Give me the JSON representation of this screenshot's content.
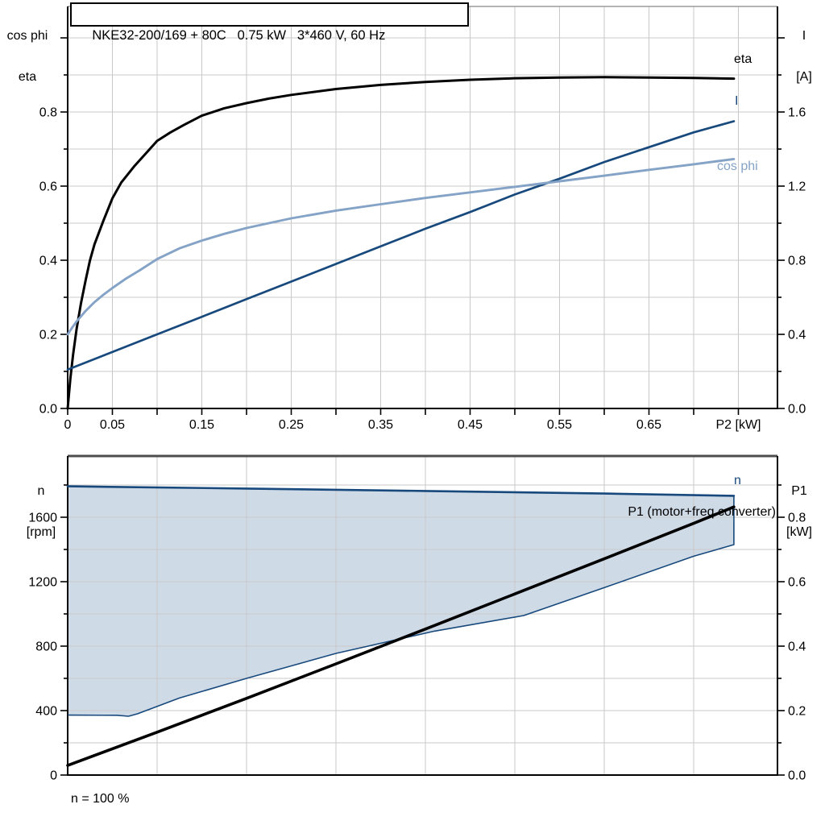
{
  "title": "NKE32-200/169 + 80C   0.75 kW   3*460 V, 60 Hz",
  "colors": {
    "eta": "#000000",
    "current": "#17497C",
    "cos_phi": "#84A3C6",
    "p1": "#000000",
    "area_fill": "#CFDAE7",
    "area_border": "#17497C",
    "grid": "#C9C9C9",
    "axis": "#000000"
  },
  "chart_data": [
    {
      "type": "line",
      "title": "NKE32-200/169 + 80C   0.75 kW   3*460 V, 60 Hz",
      "x_axis": {
        "label": "P2 [kW]",
        "min": 0,
        "max": 0.7937,
        "grid_step": 0.05,
        "tick_step": 0.05,
        "tick_labels": [
          "0",
          "0.05",
          "0.15",
          "0.25",
          "0.35",
          "0.45",
          "0.55",
          "0.65"
        ],
        "tick_label_values": [
          0,
          0.05,
          0.15,
          0.25,
          0.35,
          0.45,
          0.55,
          0.65
        ],
        "axis_label_at": 0.75
      },
      "y_left_axis": {
        "label": [
          "cos phi",
          "eta"
        ],
        "min": 0,
        "max": 1.0848,
        "grid_step": 0.1,
        "minor_tick_step": 0.1,
        "major_tick_step": 0.2,
        "tick_labels": [
          "0.0",
          "0.2",
          "0.4",
          "0.6",
          "0.8"
        ],
        "tick_label_values": [
          0,
          0.2,
          0.4,
          0.6,
          0.8
        ]
      },
      "y_right_axis": {
        "label": [
          "I",
          "[A]"
        ],
        "min": 0,
        "max": 2.1696,
        "minor_tick_step": 0.2,
        "major_tick_step": 0.4,
        "tick_labels": [
          "0.0",
          "0.4",
          "0.8",
          "1.2",
          "1.6"
        ],
        "tick_label_values": [
          0,
          0.4,
          0.8,
          1.2,
          1.6
        ]
      },
      "series": [
        {
          "name": "eta",
          "label": "eta",
          "axis": "left",
          "color_key": "eta",
          "points": [
            [
              0,
              0
            ],
            [
              0.003,
              0.08
            ],
            [
              0.006,
              0.145
            ],
            [
              0.01,
              0.215
            ],
            [
              0.015,
              0.285
            ],
            [
              0.02,
              0.345
            ],
            [
              0.025,
              0.4
            ],
            [
              0.03,
              0.443
            ],
            [
              0.04,
              0.507
            ],
            [
              0.05,
              0.567
            ],
            [
              0.06,
              0.61
            ],
            [
              0.075,
              0.655
            ],
            [
              0.09,
              0.695
            ],
            [
              0.1,
              0.722
            ],
            [
              0.115,
              0.745
            ],
            [
              0.13,
              0.765
            ],
            [
              0.15,
              0.79
            ],
            [
              0.175,
              0.81
            ],
            [
              0.2,
              0.824
            ],
            [
              0.225,
              0.836
            ],
            [
              0.25,
              0.846
            ],
            [
              0.3,
              0.862
            ],
            [
              0.35,
              0.873
            ],
            [
              0.4,
              0.881
            ],
            [
              0.45,
              0.887
            ],
            [
              0.5,
              0.891
            ],
            [
              0.55,
              0.893
            ],
            [
              0.6,
              0.894
            ],
            [
              0.65,
              0.893
            ],
            [
              0.7,
              0.892
            ],
            [
              0.745,
              0.89
            ]
          ]
        },
        {
          "name": "I",
          "label": "I",
          "axis": "right",
          "color_key": "current",
          "points": [
            [
              0,
              0.21
            ],
            [
              0.05,
              0.305
            ],
            [
              0.1,
              0.4
            ],
            [
              0.15,
              0.495
            ],
            [
              0.2,
              0.59
            ],
            [
              0.25,
              0.685
            ],
            [
              0.3,
              0.78
            ],
            [
              0.35,
              0.875
            ],
            [
              0.4,
              0.97
            ],
            [
              0.45,
              1.06
            ],
            [
              0.5,
              1.155
            ],
            [
              0.55,
              1.24
            ],
            [
              0.6,
              1.33
            ],
            [
              0.65,
              1.41
            ],
            [
              0.7,
              1.49
            ],
            [
              0.745,
              1.55
            ]
          ]
        },
        {
          "name": "cos phi",
          "label": "cos phi",
          "axis": "left",
          "color_key": "cos_phi",
          "points": [
            [
              0,
              0.2
            ],
            [
              0.005,
              0.218
            ],
            [
              0.01,
              0.235
            ],
            [
              0.02,
              0.263
            ],
            [
              0.03,
              0.287
            ],
            [
              0.04,
              0.307
            ],
            [
              0.05,
              0.325
            ],
            [
              0.065,
              0.35
            ],
            [
              0.08,
              0.372
            ],
            [
              0.1,
              0.403
            ],
            [
              0.125,
              0.432
            ],
            [
              0.15,
              0.453
            ],
            [
              0.175,
              0.471
            ],
            [
              0.2,
              0.487
            ],
            [
              0.25,
              0.513
            ],
            [
              0.3,
              0.534
            ],
            [
              0.35,
              0.551
            ],
            [
              0.4,
              0.568
            ],
            [
              0.45,
              0.583
            ],
            [
              0.5,
              0.598
            ],
            [
              0.55,
              0.613
            ],
            [
              0.6,
              0.628
            ],
            [
              0.65,
              0.644
            ],
            [
              0.7,
              0.659
            ],
            [
              0.745,
              0.673
            ]
          ]
        }
      ]
    },
    {
      "type": "line-area",
      "x_axis": {
        "label": "",
        "min": 0,
        "max": 0.7937,
        "grid_step": 0.1,
        "tick_step": null,
        "tick_labels": [],
        "tick_label_values": [],
        "axis_label_at": null
      },
      "y_left_axis": {
        "label": [
          "n",
          "[rpm]"
        ],
        "min": 0,
        "max": 1980,
        "grid_step": 200,
        "minor_tick_step": 200,
        "major_tick_step": 400,
        "tick_labels": [
          "0",
          "400",
          "800",
          "1200",
          "1600"
        ],
        "tick_label_values": [
          0,
          400,
          800,
          1200,
          1600
        ]
      },
      "y_right_axis": {
        "label": [
          "P1",
          "[kW]"
        ],
        "min": 0,
        "max": 0.99,
        "minor_tick_step": 0.1,
        "major_tick_step": 0.2,
        "tick_labels": [
          "0.0",
          "0.2",
          "0.4",
          "0.6",
          "0.8"
        ],
        "tick_label_values": [
          0,
          0.2,
          0.4,
          0.6,
          0.8
        ]
      },
      "area": {
        "name": "speed-control-range",
        "fill_color_key": "area_fill",
        "border_color_key": "area_border",
        "upper_points": [
          [
            0,
            1792
          ],
          [
            0.2,
            1778
          ],
          [
            0.4,
            1763
          ],
          [
            0.6,
            1747
          ],
          [
            0.745,
            1733
          ]
        ],
        "lower_points": [
          [
            0,
            372
          ],
          [
            0.055,
            371
          ],
          [
            0.068,
            365
          ],
          [
            0.078,
            380
          ],
          [
            0.125,
            478
          ],
          [
            0.2,
            600
          ],
          [
            0.3,
            755
          ],
          [
            0.41,
            893
          ],
          [
            0.51,
            990
          ],
          [
            0.6,
            1163
          ],
          [
            0.7,
            1358
          ],
          [
            0.745,
            1430
          ]
        ]
      },
      "series": [
        {
          "name": "n",
          "label": "n",
          "axis": "left",
          "color_key": "current",
          "points": [
            [
              0,
              1792
            ],
            [
              0.2,
              1778
            ],
            [
              0.4,
              1763
            ],
            [
              0.6,
              1747
            ],
            [
              0.745,
              1733
            ]
          ]
        },
        {
          "name": "P1 (motor+freq.converter)",
          "label": "P1 (motor+freq.converter)",
          "axis": "right",
          "color_key": "p1",
          "points": [
            [
              0,
              0.03
            ],
            [
              0.1,
              0.133
            ],
            [
              0.2,
              0.238
            ],
            [
              0.3,
              0.345
            ],
            [
              0.4,
              0.453
            ],
            [
              0.5,
              0.562
            ],
            [
              0.6,
              0.671
            ],
            [
              0.7,
              0.781
            ],
            [
              0.745,
              0.832
            ]
          ]
        }
      ],
      "annotation": "n = 100 %"
    }
  ]
}
